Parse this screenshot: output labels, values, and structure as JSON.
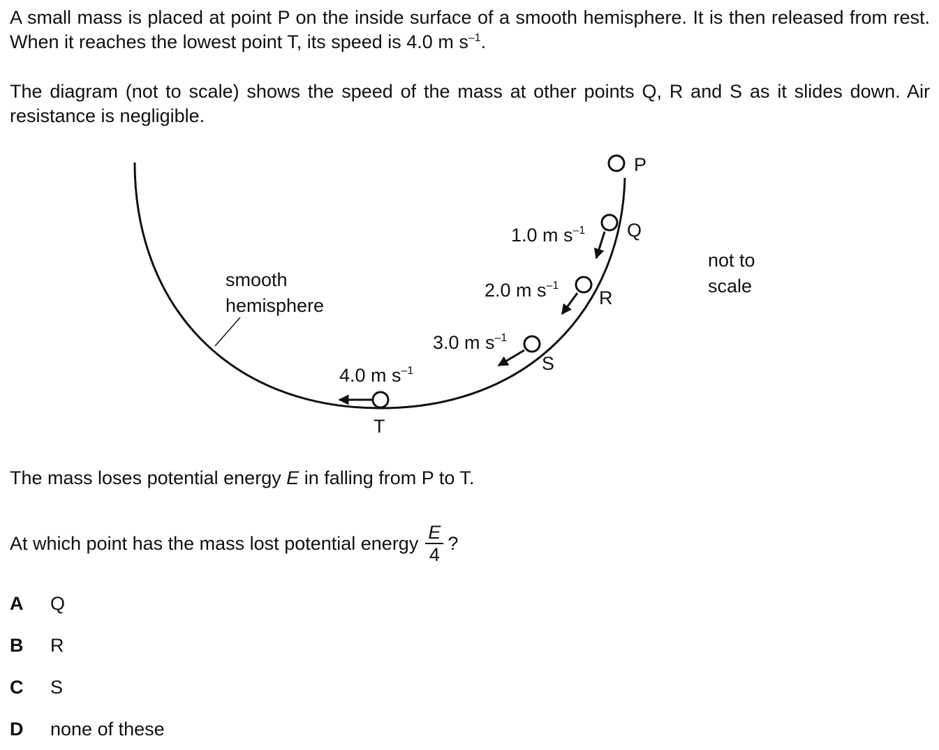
{
  "paragraphs": {
    "intro_pre": "A small mass is placed at point P on the inside surface of a smooth hemisphere. It is then released from rest. When it reaches the lowest point T, its speed is 4.0 m s",
    "intro_exp": "–1",
    "intro_post": ".",
    "diagram_desc": "The diagram (not to scale) shows the speed of the mass at other points Q, R and S as it slides down. Air resistance is negligible.",
    "energy_statement_pre": "The mass loses potential energy ",
    "energy_symbol": "E",
    "energy_statement_post": " in falling from P to T.",
    "question_pre": "At which point has the mass lost potential energy",
    "question_num": "E",
    "question_den": "4",
    "question_post": "?"
  },
  "diagram": {
    "points": {
      "P": "P",
      "Q": "Q",
      "R": "R",
      "S": "S",
      "T": "T"
    },
    "speeds": {
      "Q": {
        "value": "1.0 m s",
        "exp": "–1"
      },
      "R": {
        "value": "2.0 m s",
        "exp": "–1"
      },
      "S": {
        "value": "3.0 m s",
        "exp": "–1"
      },
      "T": {
        "value": "4.0 m s",
        "exp": "–1"
      }
    },
    "surface_label_line1": "smooth",
    "surface_label_line2": "hemisphere",
    "scale_note_line1": "not to",
    "scale_note_line2": "scale"
  },
  "options": [
    {
      "letter": "A",
      "text": "Q"
    },
    {
      "letter": "B",
      "text": "R"
    },
    {
      "letter": "C",
      "text": "S"
    },
    {
      "letter": "D",
      "text": "none of these"
    }
  ]
}
